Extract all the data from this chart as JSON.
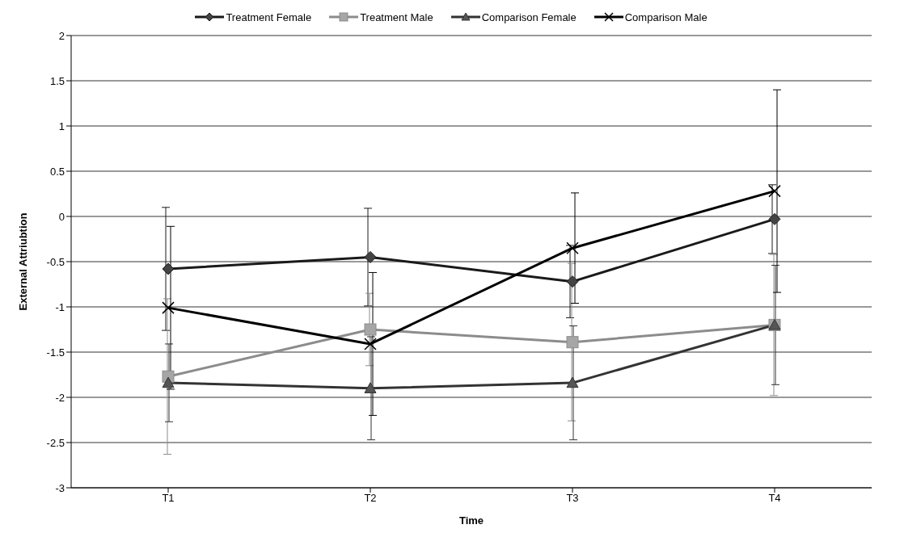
{
  "chart_data": {
    "type": "line",
    "xlabel": "Time",
    "ylabel": "External Attriubtion",
    "categories": [
      "T1",
      "T2",
      "T3",
      "T4"
    ],
    "series": [
      {
        "name": "Treatment Female",
        "color": "#1a1a1a",
        "marker": "diamond",
        "values": [
          -0.58,
          -0.45,
          -0.72,
          -0.03
        ],
        "errors": [
          0.68,
          0.54,
          0.4,
          0.38
        ]
      },
      {
        "name": "Treatment Male",
        "color": "#8c8c8c",
        "marker": "square",
        "values": [
          -1.77,
          -1.25,
          -1.39,
          -1.2
        ],
        "errors": [
          0.86,
          0.4,
          0.87,
          0.78
        ]
      },
      {
        "name": "Comparison Female",
        "color": "#333333",
        "marker": "triangle",
        "values": [
          -1.84,
          -1.9,
          -1.84,
          -1.2
        ],
        "errors": [
          0.43,
          0.57,
          0.63,
          0.66
        ]
      },
      {
        "name": "Comparison Male",
        "color": "#000000",
        "marker": "cross",
        "values": [
          -1.01,
          -1.41,
          -0.35,
          0.28
        ],
        "errors": [
          0.9,
          0.79,
          0.61,
          1.12
        ]
      }
    ],
    "ylim": [
      -3,
      2
    ],
    "yticks": [
      -3,
      -2.5,
      -2,
      -1.5,
      -1,
      -0.5,
      0,
      0.5,
      1,
      1.5,
      2
    ],
    "grid": "y",
    "legend": "top",
    "line_style": "solid"
  }
}
